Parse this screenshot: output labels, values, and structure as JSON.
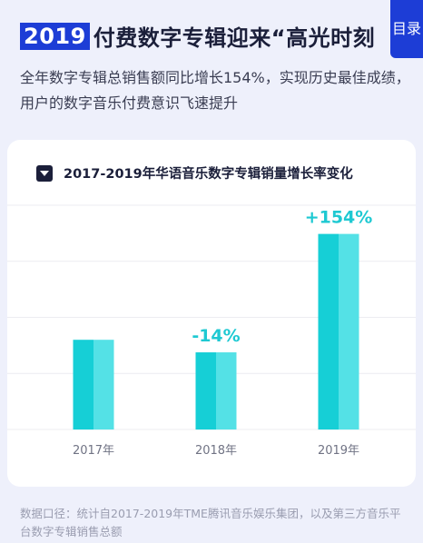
{
  "header": {
    "year_badge": "2019",
    "title": "付费数字专辑迎来“高光时刻",
    "toc_tab": "目录"
  },
  "lede": "全年数字专辑总销售额同比增长154%，实现历史最佳成绩，用户的数字音乐付费意识飞速提升",
  "chart_data": {
    "type": "bar",
    "title": "2017-2019年华语音乐数字专辑销量增长率变化",
    "categories": [
      "2017年",
      "2018年",
      "2019年"
    ],
    "values": [
      100,
      86,
      218
    ],
    "data_labels": [
      "",
      "-14%",
      "+154%"
    ],
    "ylim": [
      0,
      250
    ],
    "grid": true,
    "xlabel": "",
    "ylabel": "",
    "colors": {
      "bar_dark": "#16cfd6",
      "bar_light": "#54e1e6",
      "label": "#1ec9d2",
      "grid": "#ececf1",
      "tick": "#707384"
    }
  },
  "footnote": "数据口径：统计自2017-2019年TME腾讯音乐娱乐集团，以及第三方音乐平台数字专辑销售总额"
}
